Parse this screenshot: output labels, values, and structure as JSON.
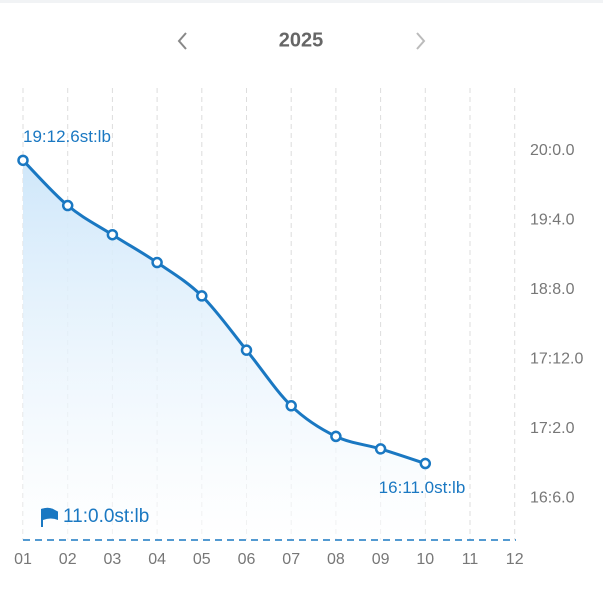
{
  "chart_data": {
    "type": "line",
    "title": "2025",
    "categories": [
      "01",
      "02",
      "03",
      "04",
      "05",
      "06",
      "07",
      "08",
      "09",
      "10",
      "11",
      "12"
    ],
    "values": [
      278.6,
      272.1,
      267.9,
      263.9,
      259.1,
      251.3,
      243.3,
      238.9,
      237.1,
      235,
      null,
      null
    ],
    "value_labels": [
      "19:12.6st:lb",
      null,
      null,
      null,
      null,
      null,
      null,
      null,
      null,
      "16:11.0st:lb",
      null,
      null
    ],
    "color": "#1a78c2",
    "ylim": [
      224,
      289
    ],
    "yticks": [
      {
        "value": 280,
        "label": "20:0.0"
      },
      {
        "value": 270,
        "label": "19:4.0"
      },
      {
        "value": 260,
        "label": "18:8.0"
      },
      {
        "value": 250,
        "label": "17:12.0"
      },
      {
        "value": 240,
        "label": "17:2.0"
      },
      {
        "value": 230,
        "label": "16:6.0"
      }
    ],
    "goal_label": "11:0.0st:lb",
    "grid": true
  }
}
